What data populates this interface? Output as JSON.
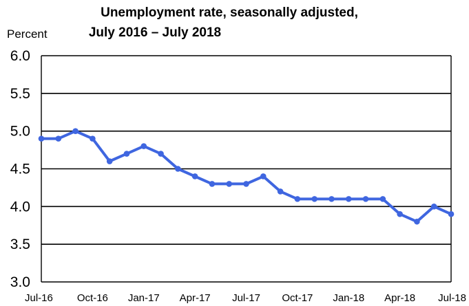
{
  "chart_data": {
    "type": "line",
    "title_line1": "Unemployment rate, seasonally adjusted,",
    "title_line2": "July 2016 – July 2018",
    "ylabel": "Percent",
    "xlabel": "",
    "ylim": [
      3.0,
      6.0
    ],
    "yticks": [
      "6.0",
      "5.5",
      "5.0",
      "4.5",
      "4.0",
      "3.5",
      "3.0"
    ],
    "ytick_values": [
      6.0,
      5.5,
      5.0,
      4.5,
      4.0,
      3.5,
      3.0
    ],
    "xtick_labels": [
      "Jul-16",
      "Oct-16",
      "Jan-17",
      "Apr-17",
      "Jul-17",
      "Oct-17",
      "Jan-18",
      "Apr-18",
      "Jul-18"
    ],
    "xtick_indices": [
      0,
      3,
      6,
      9,
      12,
      15,
      18,
      21,
      24
    ],
    "grid": true,
    "series": [
      {
        "name": "Unemployment rate",
        "color": "#3f66e0",
        "values": [
          4.9,
          4.9,
          5.0,
          4.9,
          4.6,
          4.7,
          4.8,
          4.7,
          4.5,
          4.4,
          4.3,
          4.3,
          4.3,
          4.4,
          4.2,
          4.1,
          4.1,
          4.1,
          4.1,
          4.1,
          4.1,
          3.9,
          3.8,
          4.0,
          3.9
        ]
      }
    ]
  }
}
